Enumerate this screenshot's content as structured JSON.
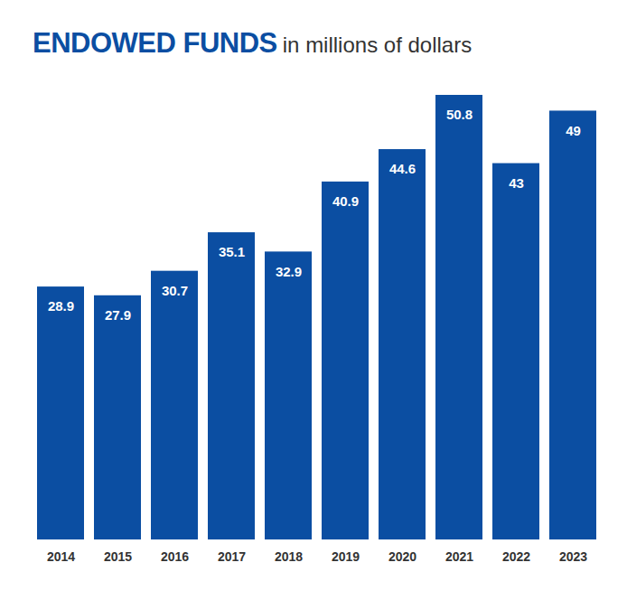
{
  "chart_data": {
    "type": "bar",
    "title": "ENDOWED FUNDS",
    "subtitle": "in millions of dollars",
    "categories": [
      "2014",
      "2015",
      "2016",
      "2017",
      "2018",
      "2019",
      "2020",
      "2021",
      "2022",
      "2023"
    ],
    "values": [
      28.9,
      27.9,
      30.7,
      35.1,
      32.9,
      40.9,
      44.6,
      50.8,
      43,
      49
    ],
    "color": "#0b4ea2",
    "data_labels": true,
    "tick_labels": "x",
    "grid": false
  }
}
